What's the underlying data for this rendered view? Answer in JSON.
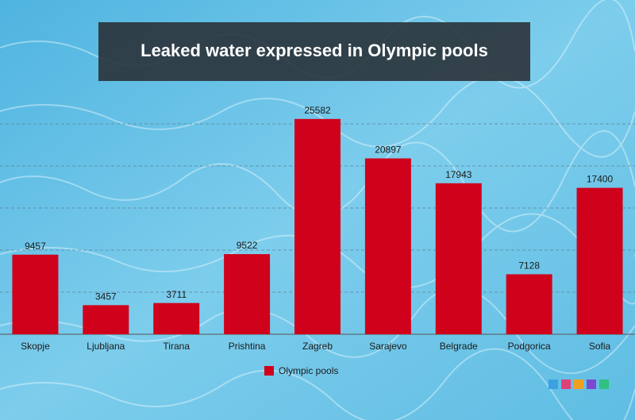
{
  "chart_data": {
    "type": "bar",
    "title": "Leaked water expressed in Olympic pools",
    "categories": [
      "Skopje",
      "Ljubljana",
      "Tirana",
      "Prishtina",
      "Zagreb",
      "Sarajevo",
      "Belgrade",
      "Podgorica",
      "Sofia"
    ],
    "series": [
      {
        "name": "Olympic pools",
        "color": "#d0021b",
        "values": [
          9457,
          3457,
          3711,
          9522,
          25582,
          20897,
          17943,
          7128,
          17400
        ]
      }
    ],
    "ylim": [
      0,
      30000
    ],
    "yticks": [
      0,
      5000,
      10000,
      15000,
      20000,
      25000
    ],
    "grid": true,
    "legend": "bottom"
  }
}
